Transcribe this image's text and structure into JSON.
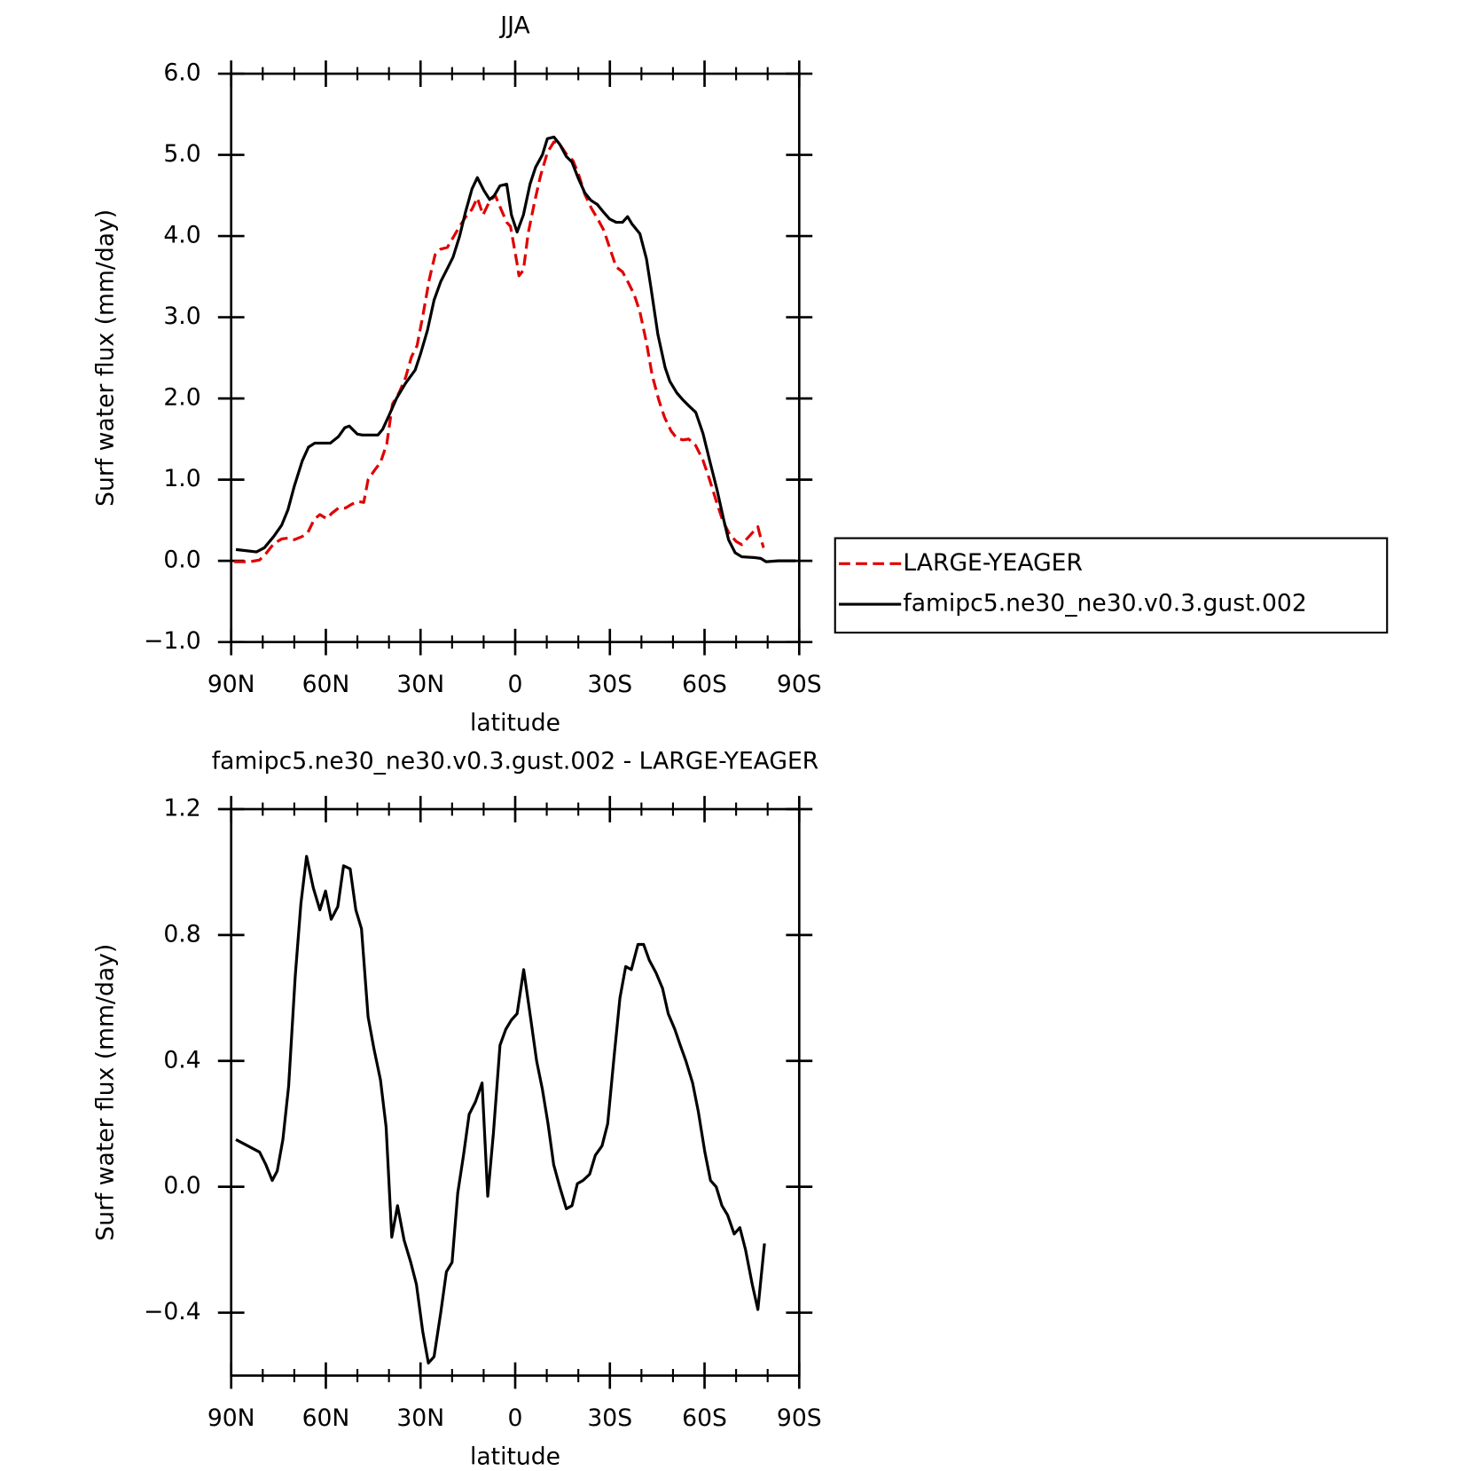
{
  "chart_data": [
    {
      "type": "line",
      "title": "JJA",
      "x_label": "latitude",
      "y_label": "Surf water flux (mm/day)",
      "xlim": [
        90,
        -90
      ],
      "xticks": [
        {
          "value": 90,
          "label": "90N"
        },
        {
          "value": 60,
          "label": "60N"
        },
        {
          "value": 30,
          "label": "30N"
        },
        0,
        {
          "value": -30,
          "label": "30S"
        },
        {
          "value": -60,
          "label": "60S"
        },
        {
          "value": -90,
          "label": "90S"
        }
      ],
      "ylim": [
        -1,
        6
      ],
      "yticks": [
        {
          "value": -1,
          "label": "−1.0"
        },
        {
          "value": 0,
          "label": "0.0"
        },
        {
          "value": 1,
          "label": "1.0"
        },
        {
          "value": 2,
          "label": "2.0"
        },
        {
          "value": 3,
          "label": "3.0"
        },
        {
          "value": 4,
          "label": "4.0"
        },
        {
          "value": 5,
          "label": "5.0"
        },
        {
          "value": 6,
          "label": "6.0"
        }
      ],
      "legend": "outside right",
      "series": [
        {
          "name": "LARGE-YEAGER",
          "color": "#e00000",
          "dash": "dashed",
          "x": [
            89,
            84,
            81,
            79,
            76.5,
            74,
            72,
            70,
            67.5,
            65.7,
            63.7,
            61.9,
            59.8,
            58,
            56,
            53.8,
            51.7,
            49.6,
            48,
            46.6,
            44.5,
            42.7,
            40.7,
            38.9,
            36.8,
            34.7,
            32.9,
            31.1,
            29.3,
            27.2,
            25.4,
            23.6,
            21.5,
            19.7,
            17.6,
            15.8,
            13.7,
            12,
            10.2,
            8.1,
            6.3,
            4.5,
            2.7,
            1.5,
            -0.6,
            -1.2,
            -2.6,
            -4.1,
            -6.2,
            -8,
            -10.2,
            -12.3,
            -14.1,
            -16.2,
            -18.3,
            -20,
            -22.1,
            -24.2,
            -26,
            -28.1,
            -29.9,
            -32,
            -34,
            -35.8,
            -37.7,
            -39.5,
            -41.6,
            -43.4,
            -45.5,
            -47.3,
            -49.4,
            -51.2,
            -53.2,
            -55,
            -57.2,
            -59.5,
            -61.6,
            -63.7,
            -65.8,
            -67.9,
            -70,
            -71.8,
            -73.6,
            -75.7,
            -76.9,
            -77.8,
            -78.7
          ],
          "values": [
            -0.01,
            -0.01,
            0.01,
            0.09,
            0.21,
            0.27,
            0.28,
            0.26,
            0.3,
            0.35,
            0.51,
            0.57,
            0.52,
            0.59,
            0.65,
            0.65,
            0.7,
            0.73,
            0.72,
            1.0,
            1.12,
            1.21,
            1.44,
            1.93,
            2.07,
            2.26,
            2.51,
            2.65,
            3.01,
            3.47,
            3.77,
            3.84,
            3.86,
            3.98,
            4.12,
            4.23,
            4.33,
            4.47,
            4.26,
            4.43,
            4.5,
            4.33,
            4.17,
            4.12,
            3.66,
            3.51,
            3.58,
            4.03,
            4.43,
            4.74,
            5.03,
            5.16,
            5.13,
            5.01,
            4.93,
            4.77,
            4.51,
            4.34,
            4.22,
            4.07,
            3.86,
            3.62,
            3.56,
            3.43,
            3.28,
            3.07,
            2.69,
            2.29,
            1.98,
            1.77,
            1.6,
            1.51,
            1.49,
            1.5,
            1.42,
            1.24,
            1.0,
            0.74,
            0.49,
            0.33,
            0.24,
            0.2,
            0.28,
            0.37,
            0.42,
            0.28,
            0.16
          ]
        },
        {
          "name": "famipc5.ne30_ne30.v0.3.gust.002",
          "color": "#000000",
          "dash": "solid",
          "x": [
            88.5,
            82,
            79.5,
            76.5,
            74,
            72,
            70,
            67.5,
            65.5,
            63.5,
            58.6,
            56,
            54,
            52.6,
            50,
            48.4,
            43.5,
            42,
            40,
            37.6,
            34.7,
            31.7,
            30,
            27.8,
            25.7,
            23.6,
            21.5,
            19.7,
            17.6,
            15.8,
            13.7,
            12,
            9.9,
            8.1,
            6.6,
            4.8,
            2.7,
            1.2,
            -0.6,
            -2.6,
            -4.7,
            -6.5,
            -8.6,
            -10.2,
            -12.3,
            -14.1,
            -16.2,
            -18,
            -20,
            -22.1,
            -24,
            -26,
            -28.1,
            -29.9,
            -32,
            -34,
            -35.6,
            -37,
            -39.5,
            -41.6,
            -43,
            -45.2,
            -47.5,
            -49,
            -51.2,
            -53.2,
            -55,
            -57.2,
            -59.5,
            -61.6,
            -64,
            -66.1,
            -67.6,
            -69.7,
            -71.8,
            -76,
            -77.8,
            -79.5,
            -83.4,
            -88.8
          ],
          "values": [
            0.14,
            0.11,
            0.16,
            0.3,
            0.44,
            0.63,
            0.92,
            1.23,
            1.4,
            1.45,
            1.45,
            1.53,
            1.64,
            1.66,
            1.56,
            1.55,
            1.55,
            1.62,
            1.79,
            2.0,
            2.19,
            2.35,
            2.55,
            2.84,
            3.21,
            3.44,
            3.6,
            3.74,
            4.0,
            4.29,
            4.58,
            4.72,
            4.56,
            4.45,
            4.5,
            4.62,
            4.64,
            4.26,
            4.05,
            4.26,
            4.64,
            4.85,
            5.0,
            5.2,
            5.22,
            5.13,
            4.98,
            4.91,
            4.71,
            4.53,
            4.44,
            4.39,
            4.29,
            4.21,
            4.17,
            4.17,
            4.24,
            4.15,
            4.03,
            3.72,
            3.37,
            2.79,
            2.38,
            2.21,
            2.07,
            1.98,
            1.91,
            1.83,
            1.57,
            1.24,
            0.87,
            0.5,
            0.26,
            0.1,
            0.05,
            0.04,
            0.03,
            -0.01,
            0.0,
            0.0
          ]
        }
      ]
    },
    {
      "type": "line",
      "title": "famipc5.ne30_ne30.v0.3.gust.002 - LARGE-YEAGER",
      "x_label": "latitude",
      "y_label": "Surf water flux (mm/day)",
      "xlim": [
        90,
        -90
      ],
      "xticks": [
        {
          "value": 90,
          "label": "90N"
        },
        {
          "value": 60,
          "label": "60N"
        },
        {
          "value": 30,
          "label": "30N"
        },
        0,
        {
          "value": -30,
          "label": "30S"
        },
        {
          "value": -60,
          "label": "60S"
        },
        {
          "value": -90,
          "label": "90S"
        }
      ],
      "ylim": [
        -0.6,
        1.2
      ],
      "yticks": [
        {
          "value": -0.4,
          "label": "−0.4"
        },
        {
          "value": 0,
          "label": "0.0"
        },
        0.4,
        0.8,
        1.2
      ],
      "series": [
        {
          "color": "#000000",
          "dash": "solid",
          "x": [
            88.5,
            81,
            79,
            77,
            75.4,
            73.6,
            71.8,
            69.7,
            67.9,
            66.1,
            64,
            61.9,
            60.1,
            58.3,
            56.2,
            54.4,
            52.3,
            50.5,
            48.7,
            46.6,
            44.8,
            42.7,
            40.9,
            39.1,
            37.3,
            35.2,
            33.1,
            31.3,
            29.3,
            27.5,
            25.7,
            23.6,
            21.8,
            20,
            18.2,
            16.4,
            14.6,
            12.6,
            10.5,
            8.7,
            6.9,
            4.8,
            3,
            1.2,
            -0.6,
            -2.7,
            -4.7,
            -6.8,
            -8.6,
            -10.4,
            -12.2,
            -14.1,
            -16.2,
            -18,
            -19.7,
            -21.5,
            -23.6,
            -25.4,
            -27.5,
            -29.3,
            -31.4,
            -33.2,
            -35,
            -36.8,
            -38.9,
            -40.7,
            -42.5,
            -44.6,
            -46.7,
            -48.5,
            -50.6,
            -52.3,
            -54.1,
            -56.2,
            -58,
            -60.1,
            -61.9,
            -63.7,
            -65.5,
            -67.3,
            -69.4,
            -71.2,
            -73,
            -75.1,
            -76.9,
            -79
          ],
          "values": [
            0.15,
            0.11,
            0.07,
            0.02,
            0.05,
            0.15,
            0.32,
            0.67,
            0.9,
            1.05,
            0.95,
            0.88,
            0.94,
            0.85,
            0.89,
            1.02,
            1.01,
            0.88,
            0.82,
            0.54,
            0.44,
            0.34,
            0.19,
            -0.16,
            -0.06,
            -0.17,
            -0.24,
            -0.31,
            -0.46,
            -0.56,
            -0.54,
            -0.4,
            -0.27,
            -0.24,
            -0.02,
            0.1,
            0.23,
            0.27,
            0.33,
            -0.03,
            0.17,
            0.45,
            0.5,
            0.53,
            0.55,
            0.69,
            0.55,
            0.4,
            0.31,
            0.2,
            0.07,
            0.0,
            -0.07,
            -0.06,
            0.01,
            0.02,
            0.04,
            0.1,
            0.13,
            0.2,
            0.42,
            0.6,
            0.7,
            0.69,
            0.77,
            0.77,
            0.72,
            0.68,
            0.63,
            0.55,
            0.5,
            0.45,
            0.4,
            0.33,
            0.24,
            0.11,
            0.02,
            0.0,
            -0.06,
            -0.09,
            -0.15,
            -0.13,
            -0.2,
            -0.31,
            -0.39,
            -0.18
          ]
        }
      ]
    }
  ]
}
